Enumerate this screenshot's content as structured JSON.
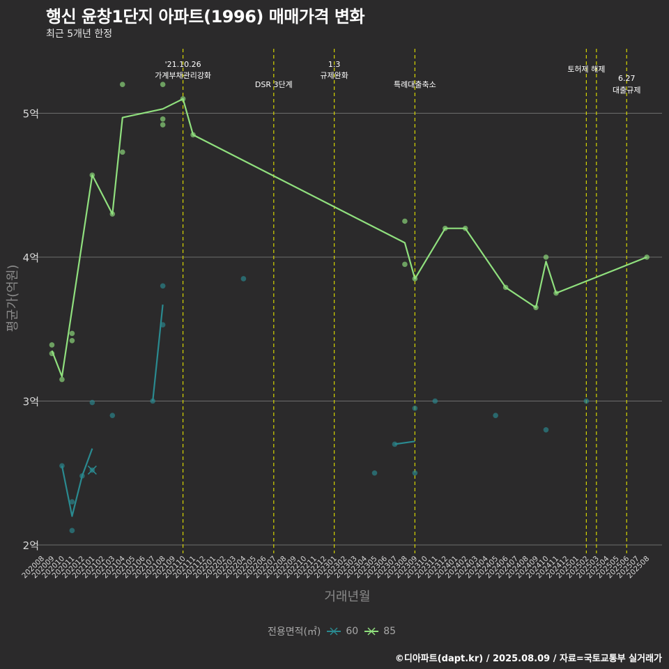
{
  "header": {
    "title": "행신 윤창1단지 아파트(1996) 매매가격 변화",
    "subtitle": "최근 5개년 한정"
  },
  "caption": "©디아파트(dapt.kr) / 2025.08.09 / 자료=국토교통부 실거래가",
  "legend": {
    "title": "전용면적(㎡)",
    "items": [
      {
        "label": "60",
        "color": "#2a8a90"
      },
      {
        "label": "85",
        "color": "#90e07e"
      }
    ]
  },
  "chart_data": {
    "type": "line",
    "title": "행신 윤창1단지 아파트(1996) 매매가격 변화",
    "subtitle": "최근 5개년 한정",
    "xlabel": "거래년월",
    "ylabel": "평균가(억원)",
    "ylim": [
      1.95,
      5.4
    ],
    "yticks": [
      2,
      3,
      4,
      5
    ],
    "ytick_labels": [
      "2억",
      "3억",
      "4억",
      "5억"
    ],
    "categories": [
      "202008",
      "202009",
      "202010",
      "202011",
      "202012",
      "202101",
      "202102",
      "202103",
      "202104",
      "202105",
      "202106",
      "202107",
      "202108",
      "202109",
      "202110",
      "202111",
      "202112",
      "202201",
      "202202",
      "202203",
      "202204",
      "202205",
      "202206",
      "202207",
      "202208",
      "202209",
      "202210",
      "202211",
      "202212",
      "202301",
      "202302",
      "202303",
      "202304",
      "202305",
      "202306",
      "202307",
      "202308",
      "202309",
      "202310",
      "202311",
      "202312",
      "202401",
      "202402",
      "202403",
      "202404",
      "202405",
      "202406",
      "202407",
      "202408",
      "202409",
      "202410",
      "202411",
      "202412",
      "202501",
      "202502",
      "202503",
      "202504",
      "202505",
      "202506",
      "202507",
      "202508"
    ],
    "series": [
      {
        "name": "60",
        "color": "#2a8a90",
        "line": [
          [
            2,
            2.55
          ],
          [
            3,
            2.2
          ],
          [
            4,
            2.48
          ],
          [
            5,
            2.67
          ]
        ],
        "line2": [
          [
            11,
            3.0
          ],
          [
            12,
            3.67
          ]
        ],
        "line3": [
          [
            35,
            2.7
          ],
          [
            37,
            2.72
          ]
        ],
        "points": [
          [
            2,
            2.55
          ],
          [
            3,
            2.3
          ],
          [
            3,
            2.1
          ],
          [
            4,
            2.48
          ],
          [
            5,
            2.52
          ],
          [
            5,
            2.99
          ],
          [
            7,
            2.9
          ],
          [
            11,
            3.0
          ],
          [
            12,
            3.8
          ],
          [
            12,
            3.53
          ],
          [
            20,
            3.85
          ],
          [
            33,
            2.5
          ],
          [
            35,
            2.7
          ],
          [
            37,
            2.95
          ],
          [
            37,
            2.5
          ],
          [
            39,
            3.0
          ],
          [
            45,
            2.9
          ],
          [
            50,
            2.8
          ],
          [
            54,
            3.0
          ]
        ],
        "cross_markers": [
          [
            5,
            2.52
          ]
        ]
      },
      {
        "name": "85",
        "color": "#90e07e",
        "line": [
          [
            1,
            3.35
          ],
          [
            2,
            3.17
          ],
          [
            5,
            4.57
          ],
          [
            7,
            4.3
          ],
          [
            8,
            4.97
          ],
          [
            12,
            5.03
          ],
          [
            14,
            5.1
          ],
          [
            15,
            4.85
          ],
          [
            36,
            4.1
          ],
          [
            37,
            3.85
          ],
          [
            40,
            4.2
          ],
          [
            42,
            4.2
          ],
          [
            46,
            3.79
          ],
          [
            49,
            3.65
          ],
          [
            50,
            3.97
          ],
          [
            51,
            3.75
          ],
          [
            60,
            4.0
          ]
        ],
        "points": [
          [
            1,
            3.39
          ],
          [
            1,
            3.33
          ],
          [
            2,
            3.15
          ],
          [
            3,
            3.47
          ],
          [
            3,
            3.42
          ],
          [
            5,
            4.57
          ],
          [
            7,
            4.3
          ],
          [
            8,
            5.2
          ],
          [
            8,
            4.73
          ],
          [
            12,
            5.2
          ],
          [
            12,
            4.96
          ],
          [
            12,
            4.92
          ],
          [
            14,
            5.1
          ],
          [
            15,
            4.85
          ],
          [
            36,
            4.25
          ],
          [
            36,
            3.95
          ],
          [
            37,
            3.85
          ],
          [
            40,
            4.2
          ],
          [
            42,
            4.2
          ],
          [
            46,
            3.79
          ],
          [
            49,
            3.65
          ],
          [
            50,
            4.0
          ],
          [
            51,
            3.75
          ],
          [
            60,
            4.0
          ]
        ]
      }
    ],
    "events": [
      {
        "x": 14,
        "lines": [
          "'21.10.26",
          "가계부채관리강화"
        ]
      },
      {
        "x": 23,
        "lines": [
          "DSR 3단계"
        ]
      },
      {
        "x": 29,
        "lines": [
          "1.3",
          "규제완화"
        ]
      },
      {
        "x": 37,
        "lines": [
          "특례대출축소"
        ]
      },
      {
        "x": 54,
        "lines": [
          "토허제 해제"
        ]
      },
      {
        "x": 55,
        "lines": []
      },
      {
        "x": 58,
        "lines": [
          "6.27",
          "대출규제"
        ]
      }
    ]
  }
}
